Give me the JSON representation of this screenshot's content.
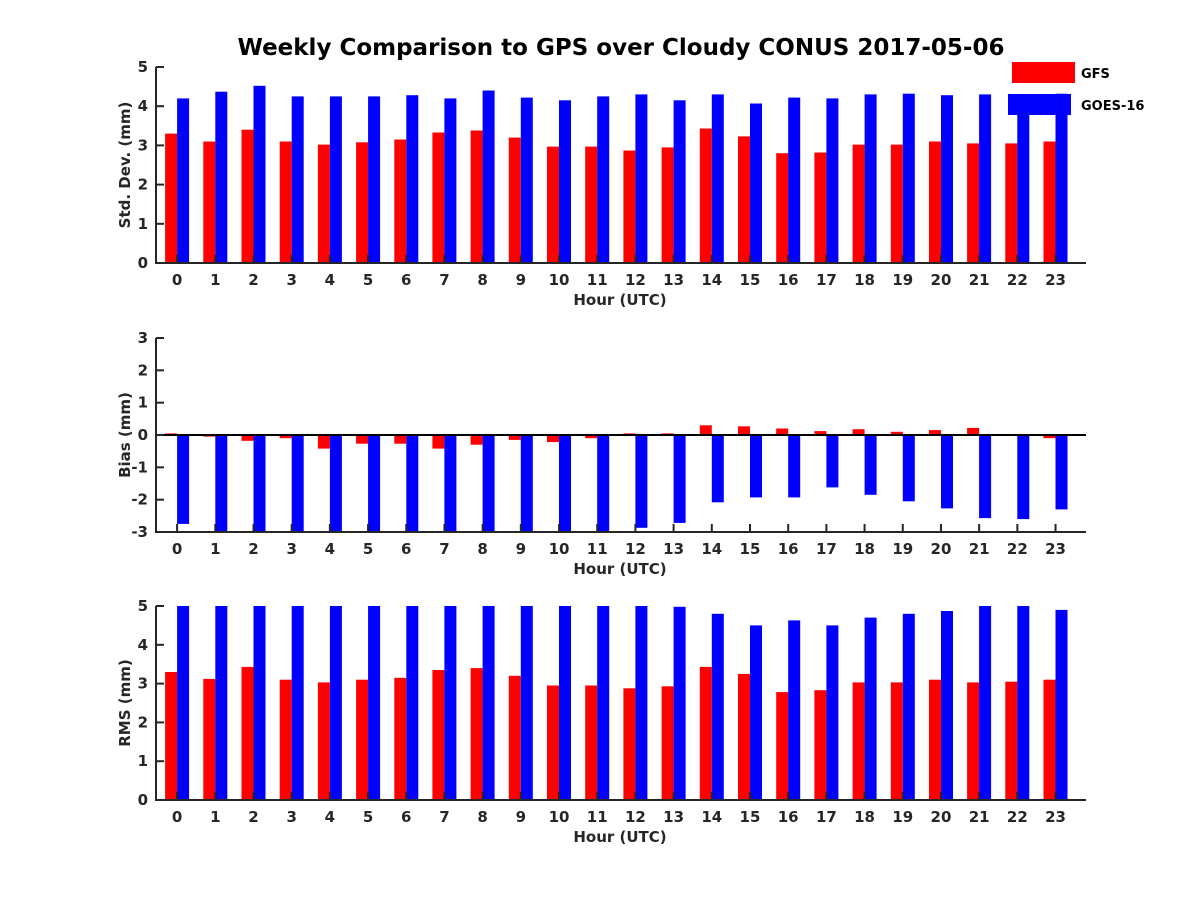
{
  "title": "Weekly Comparison to GPS over Cloudy CONUS 2017-05-06",
  "legend": {
    "placement": "top-right",
    "entries": [
      {
        "name": "GFS",
        "color": "#ff0000"
      },
      {
        "name": "GOES-16",
        "color": "#0000ff"
      }
    ]
  },
  "chart_data": [
    {
      "type": "bar",
      "ylabel": "Std. Dev. (mm)",
      "xlabel": "Hour (UTC)",
      "ylim": [
        0,
        5
      ],
      "yticks": [
        0,
        1,
        2,
        3,
        4,
        5
      ],
      "categories": [
        "0",
        "1",
        "2",
        "3",
        "4",
        "5",
        "6",
        "7",
        "8",
        "9",
        "10",
        "11",
        "12",
        "13",
        "14",
        "15",
        "16",
        "17",
        "18",
        "19",
        "20",
        "21",
        "22",
        "23"
      ],
      "series": [
        {
          "name": "GFS",
          "color": "#ff0000",
          "values": [
            3.3,
            3.1,
            3.4,
            3.1,
            3.02,
            3.08,
            3.15,
            3.33,
            3.38,
            3.2,
            2.97,
            2.97,
            2.87,
            2.95,
            3.43,
            3.23,
            2.8,
            2.82,
            3.02,
            3.02,
            3.1,
            3.05,
            3.05,
            3.1
          ]
        },
        {
          "name": "GOES-16",
          "color": "#0000ff",
          "values": [
            4.2,
            4.37,
            4.52,
            4.25,
            4.25,
            4.25,
            4.28,
            4.2,
            4.4,
            4.22,
            4.15,
            4.25,
            4.3,
            4.15,
            4.3,
            4.07,
            4.22,
            4.2,
            4.3,
            4.32,
            4.28,
            4.3,
            4.3,
            4.32
          ]
        }
      ]
    },
    {
      "type": "bar",
      "ylabel": "Bias (mm)",
      "xlabel": "Hour (UTC)",
      "ylim": [
        -3,
        3
      ],
      "yticks": [
        -3,
        -2,
        -1,
        0,
        1,
        2,
        3
      ],
      "zero_line": true,
      "categories": [
        "0",
        "1",
        "2",
        "3",
        "4",
        "5",
        "6",
        "7",
        "8",
        "9",
        "10",
        "11",
        "12",
        "13",
        "14",
        "15",
        "16",
        "17",
        "18",
        "19",
        "20",
        "21",
        "22",
        "23"
      ],
      "series": [
        {
          "name": "GFS",
          "color": "#ff0000",
          "values": [
            0.05,
            -0.05,
            -0.18,
            -0.1,
            -0.42,
            -0.27,
            -0.27,
            -0.42,
            -0.3,
            -0.15,
            -0.22,
            -0.1,
            0.05,
            0.05,
            0.3,
            0.27,
            0.2,
            0.12,
            0.18,
            0.1,
            0.15,
            0.22,
            -0.03,
            -0.1
          ]
        },
        {
          "name": "GOES-16",
          "color": "#0000ff",
          "values": [
            -2.75,
            -3.0,
            -3.0,
            -3.0,
            -3.0,
            -3.0,
            -3.0,
            -3.0,
            -3.0,
            -3.0,
            -3.0,
            -3.0,
            -2.87,
            -2.72,
            -2.08,
            -1.93,
            -1.93,
            -1.62,
            -1.85,
            -2.05,
            -2.27,
            -2.57,
            -2.6,
            -2.3
          ]
        }
      ]
    },
    {
      "type": "bar",
      "ylabel": "RMS (mm)",
      "xlabel": "Hour (UTC)",
      "ylim": [
        0,
        5
      ],
      "yticks": [
        0,
        1,
        2,
        3,
        4,
        5
      ],
      "categories": [
        "0",
        "1",
        "2",
        "3",
        "4",
        "5",
        "6",
        "7",
        "8",
        "9",
        "10",
        "11",
        "12",
        "13",
        "14",
        "15",
        "16",
        "17",
        "18",
        "19",
        "20",
        "21",
        "22",
        "23"
      ],
      "series": [
        {
          "name": "GFS",
          "color": "#ff0000",
          "values": [
            3.3,
            3.12,
            3.43,
            3.1,
            3.03,
            3.1,
            3.15,
            3.35,
            3.4,
            3.2,
            2.95,
            2.95,
            2.88,
            2.93,
            3.43,
            3.25,
            2.78,
            2.83,
            3.03,
            3.03,
            3.1,
            3.03,
            3.05,
            3.1
          ]
        },
        {
          "name": "GOES-16",
          "color": "#0000ff",
          "values": [
            5.0,
            5.0,
            5.0,
            5.0,
            5.0,
            5.0,
            5.0,
            5.0,
            5.0,
            5.0,
            5.0,
            5.0,
            5.0,
            4.98,
            4.8,
            4.5,
            4.63,
            4.5,
            4.7,
            4.8,
            4.87,
            5.0,
            5.0,
            4.9
          ]
        }
      ]
    }
  ]
}
